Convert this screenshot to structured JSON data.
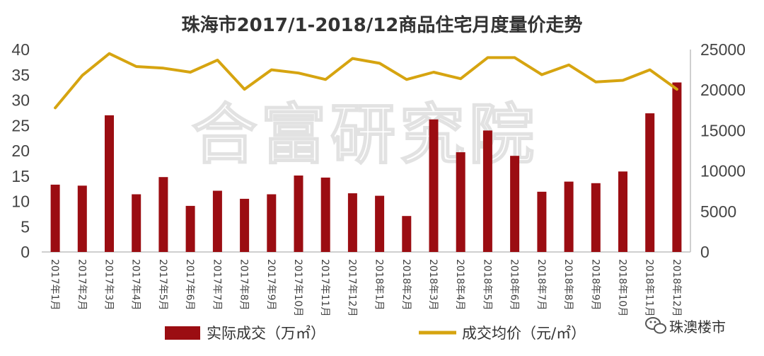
{
  "chart_data": {
    "type": "bar",
    "title": "珠海市2017/1-2018/12商品住宅月度量价走势",
    "categories": [
      "2017年1月",
      "2017年2月",
      "2017年3月",
      "2017年4月",
      "2017年5月",
      "2017年6月",
      "2017年7月",
      "2017年8月",
      "2017年9月",
      "2017年10月",
      "2017年11月",
      "2017年12月",
      "2018年1月",
      "2018年2月",
      "2018年3月",
      "2018年4月",
      "2018年5月",
      "2018年6月",
      "2018年7月",
      "2018年8月",
      "2018年9月",
      "2018年10月",
      "2018年11月",
      "2018年12月"
    ],
    "left_axis": {
      "ylim": [
        0,
        40
      ],
      "ticks": [
        "0",
        "5",
        "10",
        "15",
        "20",
        "25",
        "30",
        "35",
        "40"
      ]
    },
    "right_axis": {
      "ylim": [
        0,
        25000
      ],
      "ticks": [
        "0",
        "5000",
        "10000",
        "15000",
        "20000",
        "25000"
      ]
    },
    "series": [
      {
        "name": "实际成交（万㎡）",
        "type": "bar",
        "axis": "left",
        "color": "#9b0d12",
        "values": [
          13.3,
          13.1,
          27.0,
          11.4,
          14.8,
          9.1,
          12.1,
          10.5,
          11.4,
          15.1,
          14.7,
          11.6,
          11.1,
          7.1,
          26.2,
          19.7,
          24.0,
          19.0,
          11.9,
          13.9,
          13.6,
          15.9,
          27.4,
          33.5
        ]
      },
      {
        "name": "成交均价（元/㎡）",
        "type": "line",
        "axis": "right",
        "color": "#d6a410",
        "values": [
          17800,
          21800,
          24500,
          22900,
          22700,
          22200,
          23700,
          20100,
          22500,
          22100,
          21300,
          23900,
          23300,
          21300,
          22200,
          21400,
          24000,
          24000,
          21900,
          23100,
          21000,
          21200,
          22500,
          20100
        ]
      }
    ],
    "legend_position": "bottom",
    "grid": false
  },
  "watermark": "合富研究院",
  "brand": {
    "label": "珠澳楼市",
    "icon": "wechat-icon"
  }
}
